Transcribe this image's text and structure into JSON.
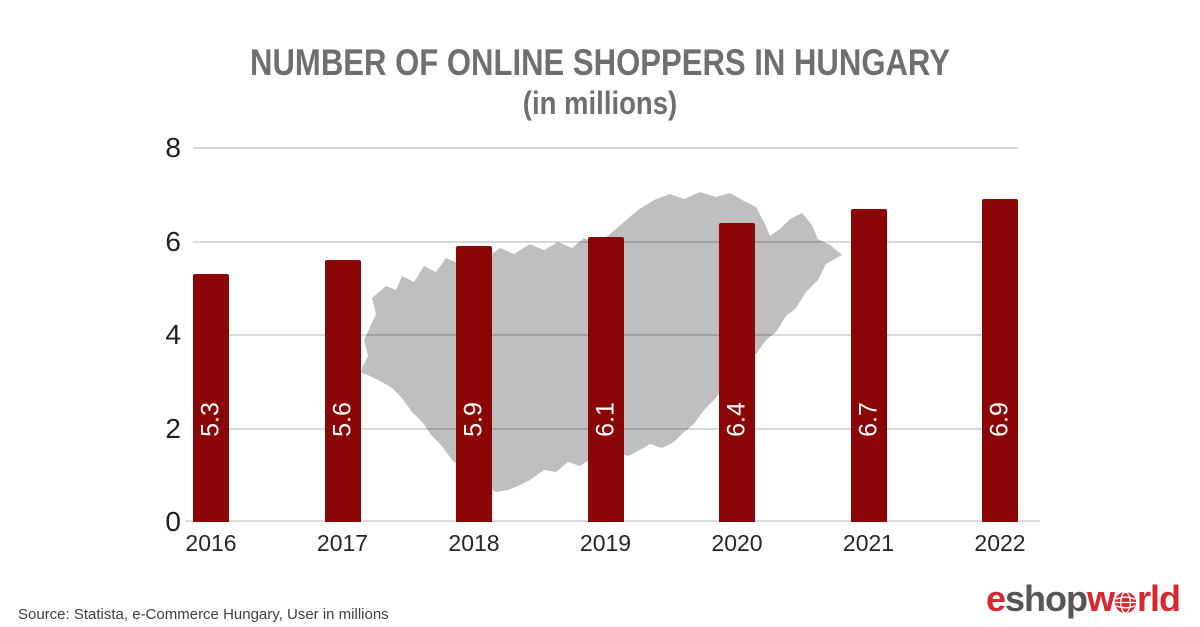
{
  "title": {
    "line1": "NUMBER OF ONLINE SHOPPERS IN HUNGARY",
    "line2": "(in millions)"
  },
  "chart_data": {
    "type": "bar",
    "title": "NUMBER OF ONLINE SHOPPERS IN HUNGARY (in millions)",
    "categories": [
      "2016",
      "2017",
      "2018",
      "2019",
      "2020",
      "2021",
      "2022"
    ],
    "values": [
      5.3,
      5.6,
      5.9,
      6.1,
      6.4,
      6.7,
      6.9
    ],
    "value_labels": [
      "5.3",
      "5.6",
      "5.9",
      "6.1",
      "6.4",
      "6.7",
      "6.9"
    ],
    "xlabel": "",
    "ylabel": "",
    "ylim": [
      0,
      8
    ],
    "yticks": [
      0,
      2,
      4,
      6,
      8
    ],
    "grid": true,
    "legend": false,
    "bar_color": "#8B0606",
    "value_label_color": "#FFFFFF",
    "background": {
      "type": "map-silhouette",
      "name": "hungary",
      "color": "#BFBFBF"
    }
  },
  "source": {
    "text": "Source: Statista, e-Commerce Hungary, User in millions"
  },
  "logo": {
    "name": "eshopworld",
    "part1": "e",
    "part2": "shop",
    "part3": "w",
    "part4": "rld",
    "red": "#D9272E",
    "gray": "#55565A"
  }
}
